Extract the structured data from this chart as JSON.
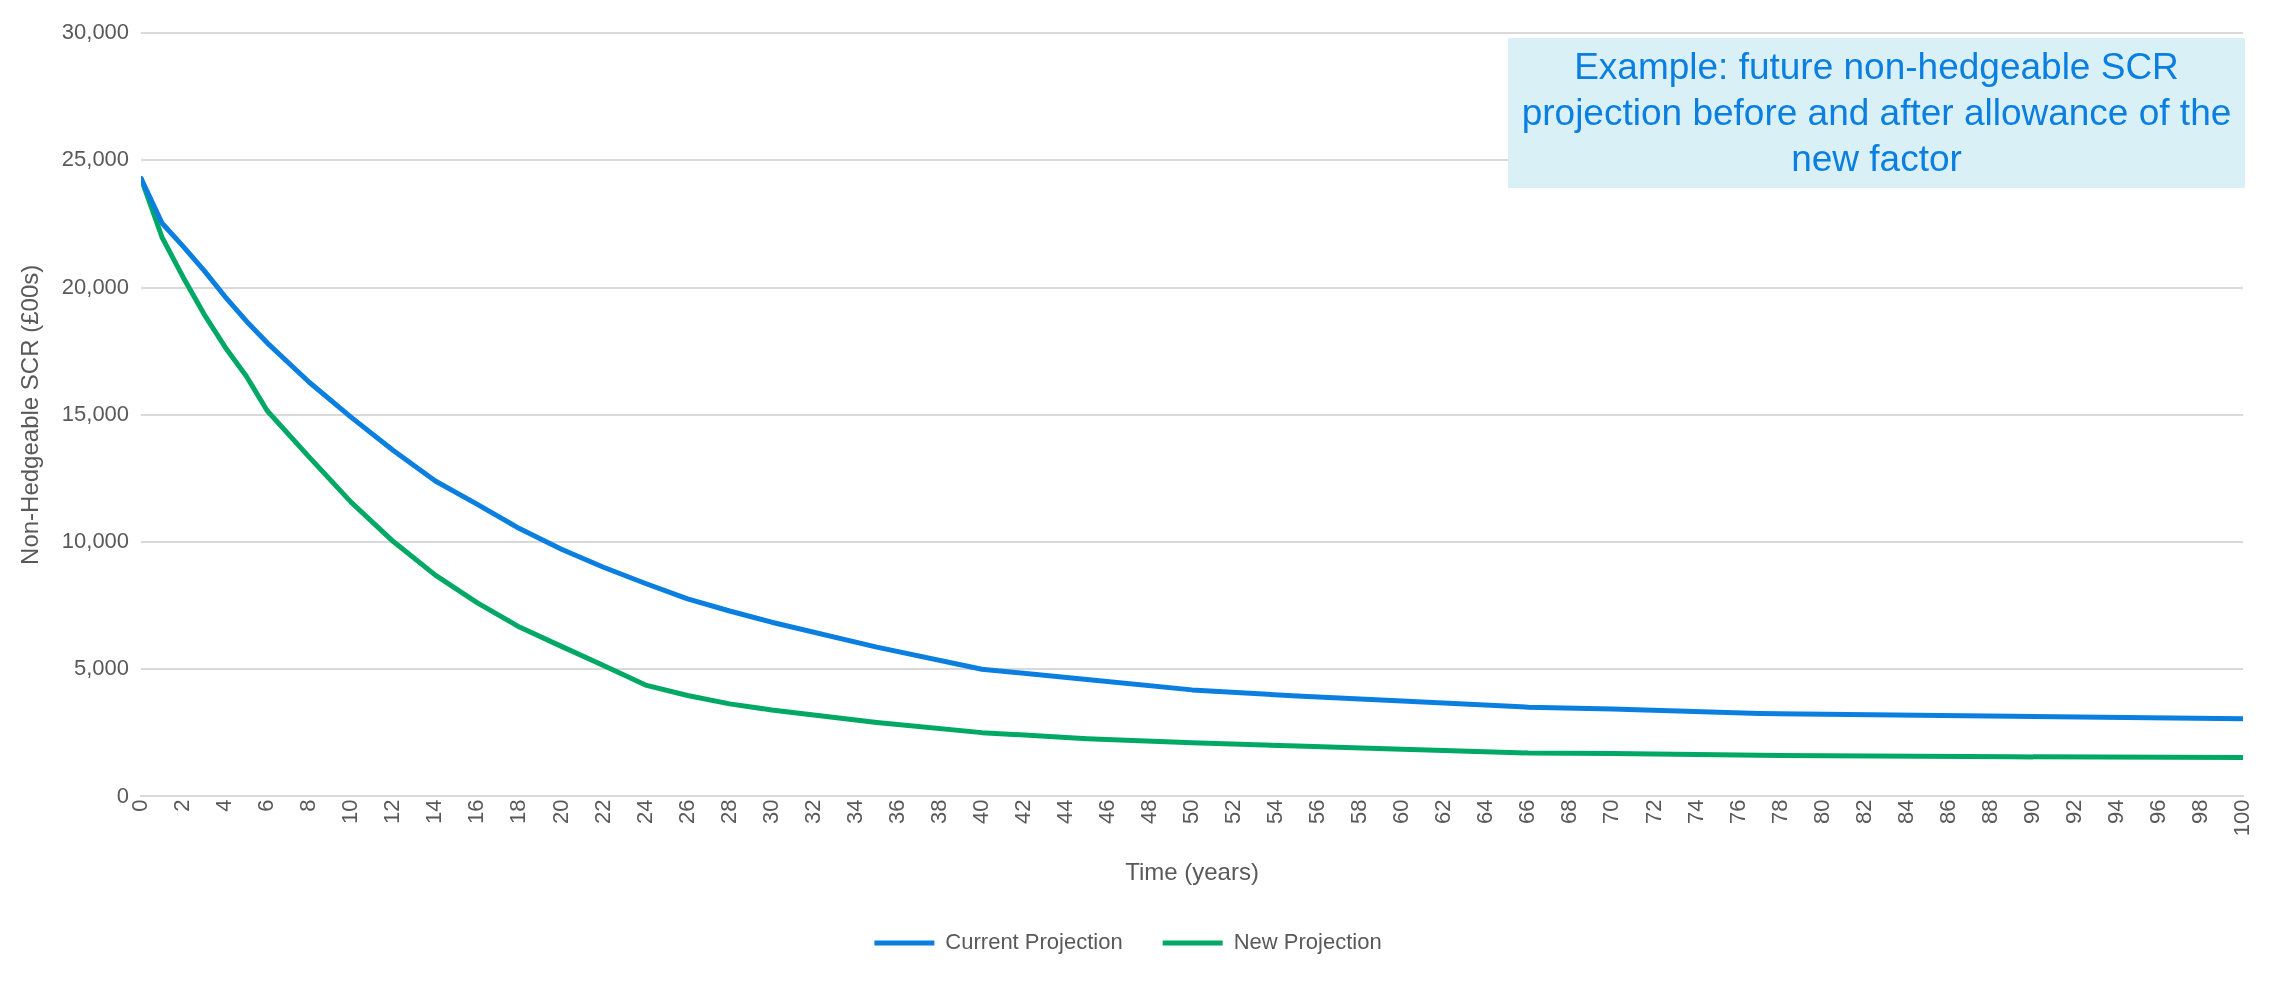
{
  "chart_data": {
    "type": "line",
    "xlabel": "Time (years)",
    "ylabel": "Non-Hedgeable SCR (£00s)",
    "annotations": [
      "Example: future non-hedgeable SCR projection before and after allowance of the new factor"
    ],
    "x": [
      0,
      1,
      2,
      3,
      4,
      5,
      6,
      8,
      10,
      12,
      14,
      16,
      18,
      20,
      22,
      24,
      26,
      28,
      30,
      35,
      40,
      45,
      50,
      55,
      60,
      66,
      70,
      77,
      89,
      100
    ],
    "series": [
      {
        "name": "Current Projection",
        "color": "#0a7fe0",
        "values": [
          24290,
          22530,
          21620,
          20670,
          19640,
          18690,
          17830,
          16280,
          14900,
          13600,
          12400,
          11480,
          10530,
          9720,
          9010,
          8370,
          7770,
          7290,
          6850,
          5870,
          5000,
          4600,
          4190,
          3950,
          3750,
          3510,
          3440,
          3260,
          3150,
          3060
        ]
      },
      {
        "name": "New Projection",
        "color": "#00a865",
        "values": [
          24290,
          21970,
          20410,
          18950,
          17660,
          16530,
          15160,
          13340,
          11560,
          10020,
          8700,
          7610,
          6660,
          5900,
          5150,
          4380,
          3970,
          3640,
          3400,
          2910,
          2510,
          2270,
          2110,
          1980,
          1860,
          1710,
          1690,
          1620,
          1560,
          1530
        ]
      }
    ],
    "xlim": [
      0,
      100
    ],
    "xticks": [
      0,
      2,
      4,
      6,
      8,
      10,
      12,
      14,
      16,
      18,
      20,
      22,
      24,
      26,
      28,
      30,
      32,
      34,
      36,
      38,
      40,
      42,
      44,
      46,
      48,
      50,
      52,
      54,
      56,
      58,
      60,
      62,
      64,
      66,
      68,
      70,
      72,
      74,
      76,
      78,
      80,
      82,
      84,
      86,
      88,
      90,
      92,
      94,
      96,
      98,
      100
    ],
    "ylim": [
      0,
      30000
    ],
    "yticks": [
      {
        "value": 0,
        "label": "0"
      },
      {
        "value": 5000,
        "label": "5,000"
      },
      {
        "value": 10000,
        "label": "10,000"
      },
      {
        "value": 15000,
        "label": "15,000"
      },
      {
        "value": 20000,
        "label": "20,000"
      },
      {
        "value": 25000,
        "label": "25,000"
      },
      {
        "value": 30000,
        "label": "30,000"
      }
    ],
    "grid": "y",
    "legend": "bottom",
    "marker": "none",
    "line_style": "solid"
  }
}
